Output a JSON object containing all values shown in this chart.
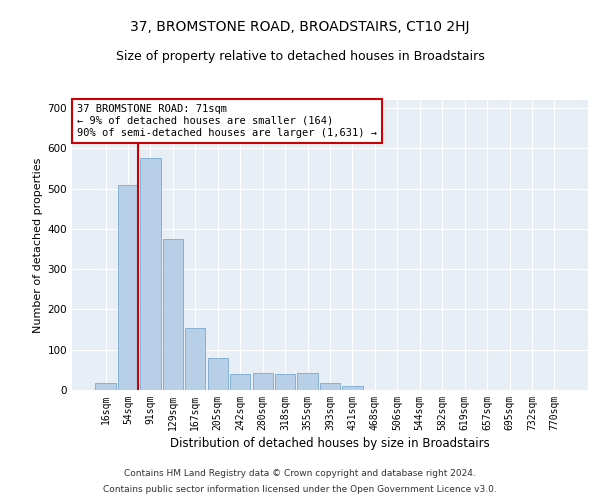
{
  "title": "37, BROMSTONE ROAD, BROADSTAIRS, CT10 2HJ",
  "subtitle": "Size of property relative to detached houses in Broadstairs",
  "xlabel": "Distribution of detached houses by size in Broadstairs",
  "ylabel": "Number of detached properties",
  "categories": [
    "16sqm",
    "54sqm",
    "91sqm",
    "129sqm",
    "167sqm",
    "205sqm",
    "242sqm",
    "280sqm",
    "318sqm",
    "355sqm",
    "393sqm",
    "431sqm",
    "468sqm",
    "506sqm",
    "544sqm",
    "582sqm",
    "619sqm",
    "657sqm",
    "695sqm",
    "732sqm",
    "770sqm"
  ],
  "values": [
    18,
    510,
    575,
    375,
    155,
    80,
    40,
    42,
    40,
    42,
    18,
    10,
    0,
    0,
    0,
    0,
    0,
    0,
    0,
    0,
    0
  ],
  "bar_color": "#b8cfe8",
  "bar_edge_color": "#7aaad0",
  "annotation_text": "37 BROMSTONE ROAD: 71sqm\n← 9% of detached houses are smaller (164)\n90% of semi-detached houses are larger (1,631) →",
  "annotation_box_color": "#ffffff",
  "annotation_box_edge_color": "#cc0000",
  "vline_color": "#cc0000",
  "ylim": [
    0,
    720
  ],
  "yticks": [
    0,
    100,
    200,
    300,
    400,
    500,
    600,
    700
  ],
  "grid_color": "#ffffff",
  "bg_color": "#e8eef5",
  "footer_line1": "Contains HM Land Registry data © Crown copyright and database right 2024.",
  "footer_line2": "Contains public sector information licensed under the Open Government Licence v3.0.",
  "title_fontsize": 10,
  "subtitle_fontsize": 9,
  "tick_fontsize": 7,
  "ylabel_fontsize": 8,
  "xlabel_fontsize": 8.5,
  "footer_fontsize": 6.5
}
